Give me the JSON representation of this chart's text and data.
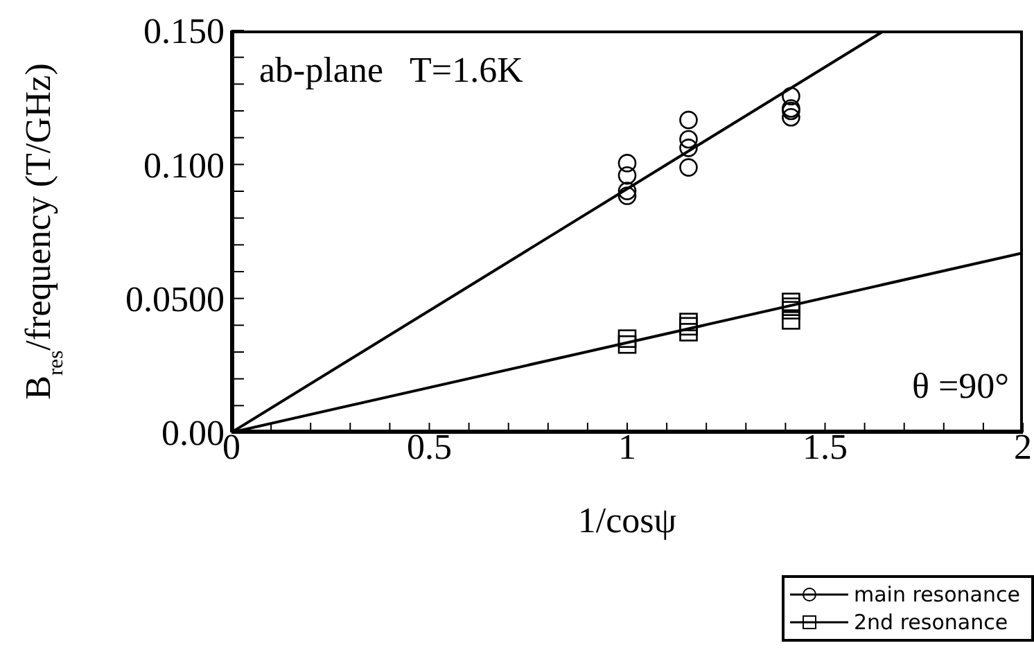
{
  "chart_data": {
    "type": "scatter",
    "xlabel": "1/cosψ",
    "ylabel": "B$_{res}$/frequency (T/GHz)",
    "annotations": [
      "ab-plane   T=1.6K",
      "θ =90°"
    ],
    "xlim": [
      0,
      2
    ],
    "ylim": [
      0,
      0.15
    ],
    "xticks": [
      0,
      {
        "value": 0.1,
        "label": null
      },
      {
        "value": 0.2,
        "label": null
      },
      {
        "value": 0.3,
        "label": null
      },
      {
        "value": 0.4,
        "label": null
      },
      0.5,
      {
        "value": 0.6,
        "label": null
      },
      {
        "value": 0.7,
        "label": null
      },
      {
        "value": 0.8,
        "label": null
      },
      {
        "value": 0.9,
        "label": null
      },
      1,
      {
        "value": 1.1,
        "label": null
      },
      {
        "value": 1.2,
        "label": null
      },
      {
        "value": 1.3,
        "label": null
      },
      {
        "value": 1.4,
        "label": null
      },
      1.5,
      {
        "value": 1.6,
        "label": null
      },
      {
        "value": 1.7,
        "label": null
      },
      {
        "value": 1.8,
        "label": null
      },
      {
        "value": 1.9,
        "label": null
      },
      2
    ],
    "yticks": [
      {
        "value": 0,
        "label": "0.00"
      },
      {
        "value": 0.01,
        "label": null
      },
      {
        "value": 0.02,
        "label": null
      },
      {
        "value": 0.03,
        "label": null
      },
      {
        "value": 0.04,
        "label": null
      },
      {
        "value": 0.05,
        "label": "0.0500"
      },
      {
        "value": 0.06,
        "label": null
      },
      {
        "value": 0.07,
        "label": null
      },
      {
        "value": 0.08,
        "label": null
      },
      {
        "value": 0.09,
        "label": null
      },
      {
        "value": 0.1,
        "label": "0.100"
      },
      {
        "value": 0.11,
        "label": null
      },
      {
        "value": 0.12,
        "label": null
      },
      {
        "value": 0.13,
        "label": null
      },
      {
        "value": 0.14,
        "label": null
      },
      {
        "value": 0.15,
        "label": "0.150"
      }
    ],
    "legend": "bottom right",
    "series": [
      {
        "name": "main resonance",
        "marker": "circle",
        "color": "#000000",
        "x": [
          1,
          1,
          1,
          1,
          1.155,
          1.155,
          1.155,
          1.155,
          1.414,
          1.414,
          1.414,
          1.414
        ],
        "values": [
          0.1005,
          0.0959,
          0.0901,
          0.0883,
          0.1166,
          0.1094,
          0.1062,
          0.0989,
          0.1255,
          0.1209,
          0.12,
          0.1176
        ]
      },
      {
        "name": "2nd resonance",
        "marker": "square",
        "color": "#000000",
        "x": [
          1,
          1,
          1.155,
          1.155,
          1.155,
          1.414,
          1.414,
          1.414,
          1.414
        ],
        "values": [
          0.035,
          0.0328,
          0.0412,
          0.0396,
          0.0374,
          0.0487,
          0.0469,
          0.0456,
          0.0418
        ]
      },
      {
        "type": "line",
        "marker": "none",
        "line_style": "solid",
        "color": "#000000",
        "x": [
          0,
          1.65
        ],
        "values": [
          0,
          0.15
        ]
      },
      {
        "type": "line",
        "marker": "none",
        "line_style": "solid",
        "color": "#000000",
        "x": [
          0,
          2
        ],
        "values": [
          0,
          0.067
        ]
      }
    ]
  }
}
